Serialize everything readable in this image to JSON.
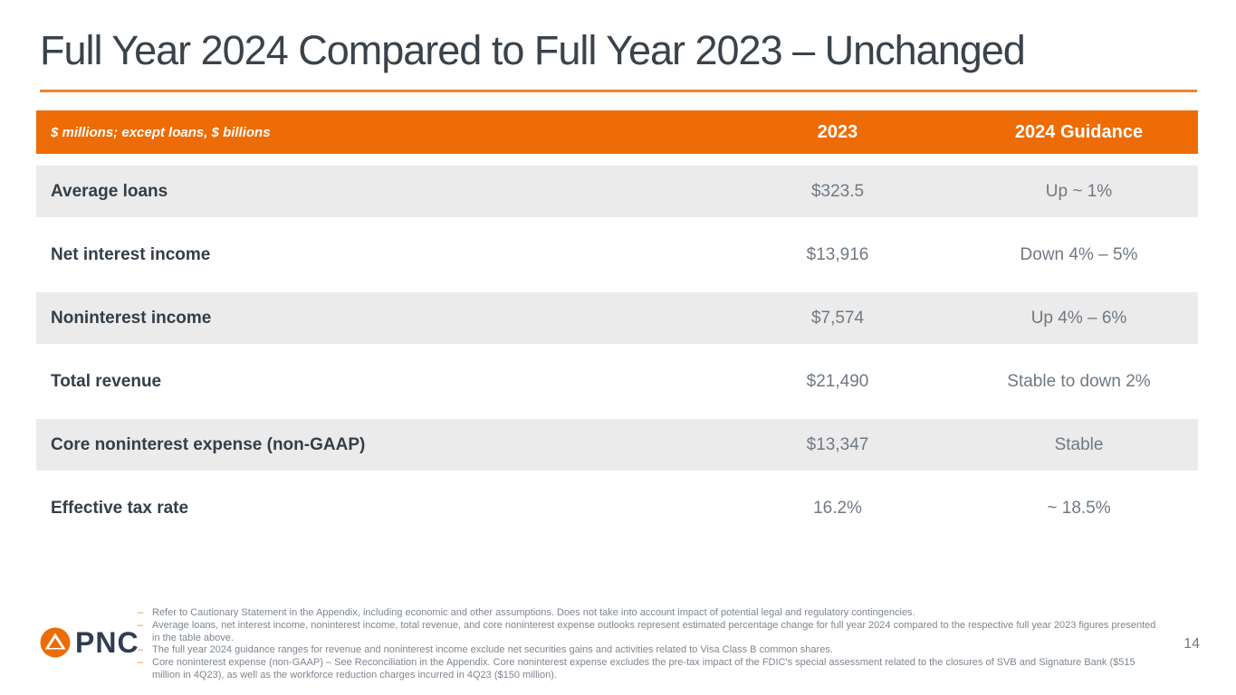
{
  "slide": {
    "title": "Full Year 2024 Compared to Full Year 2023 – Unchanged",
    "page_number": "14"
  },
  "table": {
    "header": {
      "note": "$ millions; except loans, $ billions",
      "col_2023": "2023",
      "col_guidance": "2024 Guidance"
    },
    "rows": [
      {
        "label": "Average loans",
        "value_2023": "$323.5",
        "guidance": "Up ~ 1%"
      },
      {
        "label": "Net interest income",
        "value_2023": "$13,916",
        "guidance": "Down 4% – 5%"
      },
      {
        "label": "Noninterest income",
        "value_2023": "$7,574",
        "guidance": "Up 4% – 6%"
      },
      {
        "label": "Total revenue",
        "value_2023": "$21,490",
        "guidance": "Stable to down 2%"
      },
      {
        "label": "Core noninterest expense (non-GAAP)",
        "value_2023": "$13,347",
        "guidance": "Stable"
      },
      {
        "label": "Effective tax rate",
        "value_2023": "16.2%",
        "guidance": "~ 18.5%"
      }
    ]
  },
  "footnotes": {
    "bullet": "–",
    "items": [
      "Refer to Cautionary Statement in the Appendix, including economic and other assumptions. Does not take into account impact of potential legal and regulatory contingencies.",
      "Average loans, net interest income, noninterest income, total revenue, and core noninterest expense outlooks represent estimated percentage change for full year 2024 compared to the respective full year 2023 figures presented in the table above.",
      "The full year 2024 guidance ranges for revenue and noninterest income exclude net securities gains and activities related to Visa Class B common shares.",
      "Core noninterest expense (non-GAAP) – See Reconciliation in the Appendix. Core noninterest expense excludes the pre-tax impact of the FDIC's special assessment related to the closures of SVB and Signature Bank ($515 million in 4Q23), as well as the workforce reduction charges incurred in 4Q23 ($150 million)."
    ]
  },
  "logo": {
    "wordmark": "PNC"
  },
  "colors": {
    "accent_orange": "#ED6C05",
    "underline_orange": "#EE8330",
    "row_stripe": "#EBEBEB",
    "title_color": "#3A424A",
    "label_color": "#333E48",
    "value_color": "#6F7983",
    "footnote_color": "#7D868F",
    "footnote_dash": "#E87D3C",
    "logo_navy": "#2E3D51"
  }
}
